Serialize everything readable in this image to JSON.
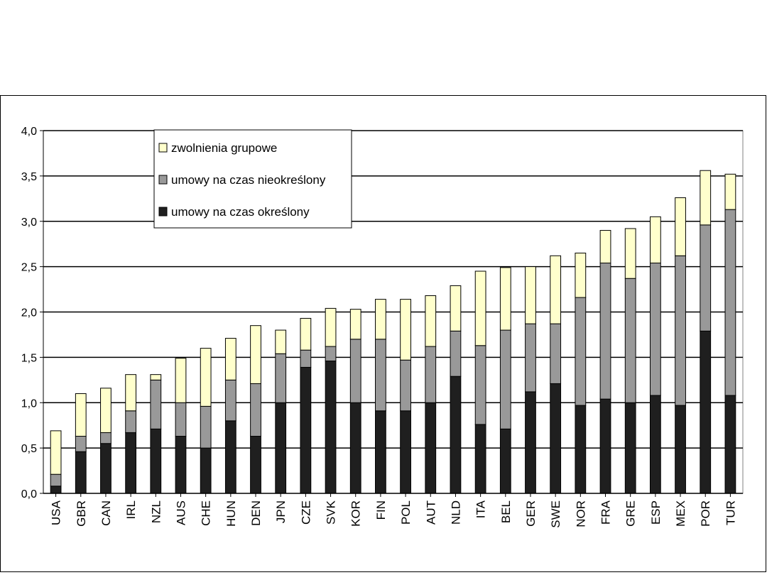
{
  "chart_data": {
    "type": "bar",
    "stacked": true,
    "title": "",
    "xlabel": "",
    "ylabel": "",
    "ylim": [
      0,
      4
    ],
    "grid": true,
    "legend_position": "top-left",
    "y_ticks": [
      "0,0",
      "0,5",
      "1,0",
      "1,5",
      "2,0",
      "2,5",
      "3,0",
      "3,5",
      "4,0"
    ],
    "categories": [
      "USA",
      "GBR",
      "CAN",
      "IRL",
      "NZL",
      "AUS",
      "CHE",
      "HUN",
      "DEN",
      "JPN",
      "CZE",
      "SVK",
      "KOR",
      "FIN",
      "POL",
      "AUT",
      "NLD",
      "ITA",
      "BEL",
      "GER",
      "SWE",
      "NOR",
      "FRA",
      "GRE",
      "ESP",
      "MEX",
      "POR",
      "TUR"
    ],
    "series": [
      {
        "name": "umowy na czas określony",
        "color": "#1f1f1f",
        "values": [
          0.08,
          0.46,
          0.55,
          0.67,
          0.71,
          0.63,
          0.5,
          0.8,
          0.63,
          1.0,
          1.39,
          1.46,
          1.0,
          0.91,
          0.91,
          1.0,
          1.29,
          0.76,
          0.71,
          1.12,
          1.21,
          0.97,
          1.04,
          1.0,
          1.08,
          0.97,
          1.79,
          1.08
        ]
      },
      {
        "name": "umowy na czas nieokreślony",
        "color": "#999999",
        "values": [
          0.13,
          0.17,
          0.12,
          0.24,
          0.54,
          0.37,
          0.46,
          0.45,
          0.58,
          0.54,
          0.19,
          0.16,
          0.7,
          0.79,
          0.56,
          0.62,
          0.5,
          0.87,
          1.09,
          0.75,
          0.66,
          1.19,
          1.5,
          1.37,
          1.46,
          1.65,
          1.17,
          2.05
        ]
      },
      {
        "name": "zwolnienia grupowe",
        "color": "#ffffcc",
        "values": [
          0.48,
          0.47,
          0.49,
          0.4,
          0.06,
          0.49,
          0.64,
          0.46,
          0.64,
          0.26,
          0.35,
          0.42,
          0.33,
          0.44,
          0.67,
          0.56,
          0.5,
          0.82,
          0.69,
          0.63,
          0.75,
          0.49,
          0.36,
          0.55,
          0.51,
          0.64,
          0.6,
          0.39
        ]
      }
    ],
    "legend_order": [
      "zwolnienia grupowe",
      "umowy na czas nieokreślony",
      "umowy na czas określony"
    ]
  }
}
